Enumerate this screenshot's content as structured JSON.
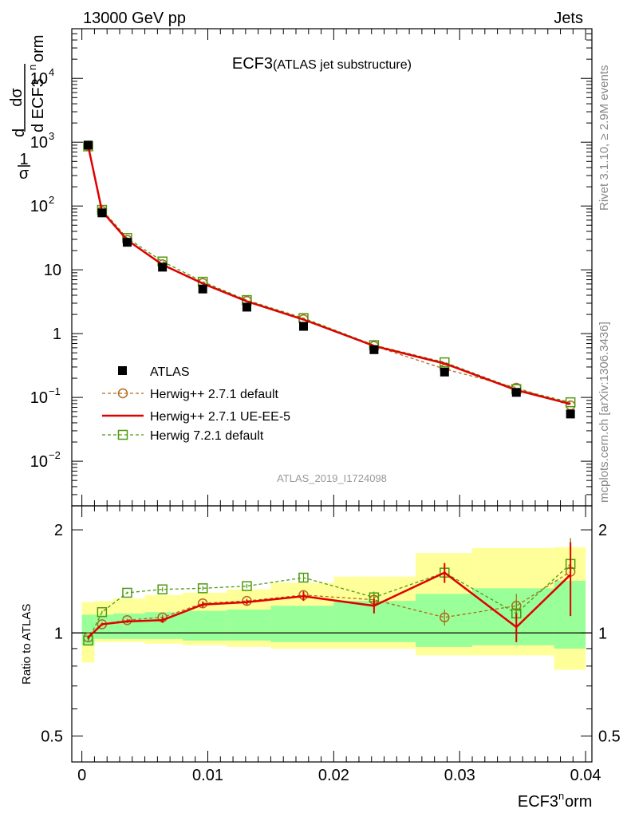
{
  "header": {
    "beam": "13000 GeV pp",
    "process": "Jets",
    "title": "ECF3",
    "subtitle": "(ATLAS jet substructure)",
    "analysis": "ATLAS_2019_I1724098",
    "side_top": "Rivet 3.1.10, ≥ 2.9M events",
    "side_bottom": "mcplots.cern.ch [arXiv:1306.3436]"
  },
  "chart_data": [
    {
      "type": "scatter",
      "panel": "main",
      "ylabel_parts": [
        "1",
        "σ",
        "dσ",
        "d ECF3",
        "n",
        "orm"
      ],
      "yscale": "log",
      "ylim": [
        0.002,
        60000
      ],
      "xlim": [
        -0.0008,
        0.0405
      ],
      "y_ticks": [
        {
          "v": 0.01,
          "base": "10",
          "exp": "−2"
        },
        {
          "v": 0.1,
          "base": "10",
          "exp": "−1"
        },
        {
          "v": 1,
          "base": "1",
          "exp": ""
        },
        {
          "v": 10,
          "base": "10",
          "exp": ""
        },
        {
          "v": 100,
          "base": "10",
          "exp": "2"
        },
        {
          "v": 1000,
          "base": "10",
          "exp": "3"
        },
        {
          "v": 10000,
          "base": "10",
          "exp": "4"
        }
      ],
      "x": [
        0.0005,
        0.0016,
        0.0036,
        0.0064,
        0.0096,
        0.0131,
        0.0176,
        0.0232,
        0.0288,
        0.0345,
        0.0388
      ],
      "series": [
        {
          "name": "ATLAS",
          "kind": "data",
          "color": "#000000",
          "values": [
            900,
            78,
            27,
            11,
            5.0,
            2.6,
            1.3,
            0.56,
            0.25,
            0.12,
            0.055
          ]
        },
        {
          "name": "Herwig++ 2.7.1 default",
          "kind": "circle",
          "color": "#b06a1e",
          "values": [
            880,
            83,
            29.5,
            12.2,
            6.2,
            3.25,
            1.68,
            0.64,
            0.28,
            0.142,
            0.075
          ]
        },
        {
          "name": "Herwig++ 2.7.1 UE-EE-5",
          "kind": "line",
          "color": "#e00000",
          "values": [
            875,
            83,
            29.2,
            12.0,
            6.1,
            3.2,
            1.66,
            0.64,
            0.34,
            0.13,
            0.079
          ]
        },
        {
          "name": "Herwig 7.2.1 default",
          "kind": "square",
          "color": "#4e9a10",
          "values": [
            860,
            87,
            31.5,
            13.5,
            6.5,
            3.35,
            1.75,
            0.66,
            0.355,
            0.135,
            0.084
          ]
        }
      ]
    },
    {
      "type": "line",
      "panel": "ratio",
      "ylabel": "Ratio to ATLAS",
      "yscale": "log",
      "ylim": [
        0.42,
        2.35
      ],
      "y_ticks": [
        {
          "v": 0.5,
          "label": "0.5"
        },
        {
          "v": 1,
          "label": "1"
        },
        {
          "v": 2,
          "label": "2"
        }
      ],
      "xlabel_parts": [
        "ECF3",
        "n",
        "orm"
      ],
      "x_ticks": [
        {
          "v": 0,
          "label": "0"
        },
        {
          "v": 0.01,
          "label": "0.01"
        },
        {
          "v": 0.02,
          "label": "0.02"
        },
        {
          "v": 0.03,
          "label": "0.03"
        },
        {
          "v": 0.04,
          "label": "0.04"
        }
      ],
      "bin_edges": [
        0.0,
        0.001,
        0.0025,
        0.005,
        0.008,
        0.0115,
        0.015,
        0.02,
        0.0265,
        0.031,
        0.0375,
        0.04
      ],
      "band_inner": [
        [
          0.92,
          1.13
        ],
        [
          0.96,
          1.13
        ],
        [
          0.96,
          1.14
        ],
        [
          0.96,
          1.15
        ],
        [
          0.95,
          1.16
        ],
        [
          0.95,
          1.17
        ],
        [
          0.94,
          1.2
        ],
        [
          0.94,
          1.24
        ],
        [
          0.91,
          1.3
        ],
        [
          0.92,
          1.35
        ],
        [
          0.9,
          1.42
        ]
      ],
      "band_outer": [
        [
          0.82,
          1.23
        ],
        [
          0.94,
          1.24
        ],
        [
          0.94,
          1.26
        ],
        [
          0.93,
          1.29
        ],
        [
          0.92,
          1.31
        ],
        [
          0.91,
          1.34
        ],
        [
          0.9,
          1.4
        ],
        [
          0.9,
          1.46
        ],
        [
          0.86,
          1.71
        ],
        [
          0.86,
          1.77
        ],
        [
          0.78,
          1.78
        ]
      ],
      "x": [
        0.0005,
        0.0016,
        0.0036,
        0.0064,
        0.0096,
        0.0131,
        0.0176,
        0.0232,
        0.0288,
        0.0345,
        0.0388
      ],
      "series": [
        {
          "name": "Herwig++ 2.7.1 default",
          "kind": "circle",
          "color": "#b06a1e",
          "values": [
            0.97,
            1.06,
            1.09,
            1.11,
            1.22,
            1.24,
            1.29,
            1.25,
            1.11,
            1.2,
            1.51
          ],
          "errors": [
            0.01,
            0.01,
            0.01,
            0.02,
            0.02,
            0.02,
            0.04,
            0.05,
            0.06,
            0.1,
            0.38
          ]
        },
        {
          "name": "Herwig++ 2.7.1 UE-EE-5",
          "kind": "line",
          "color": "#e00000",
          "values": [
            0.97,
            1.06,
            1.08,
            1.09,
            1.21,
            1.23,
            1.28,
            1.2,
            1.5,
            1.04,
            1.48
          ],
          "errors": [
            0.01,
            0.01,
            0.01,
            0.02,
            0.02,
            0.02,
            0.04,
            0.06,
            0.1,
            0.1,
            0.36
          ]
        },
        {
          "name": "Herwig 7.2.1 default",
          "kind": "square",
          "color": "#4e9a10",
          "values": [
            0.95,
            1.15,
            1.31,
            1.34,
            1.35,
            1.37,
            1.45,
            1.27,
            1.5,
            1.14,
            1.59
          ],
          "errors": [
            0.01,
            0.01,
            0.01,
            0.02,
            0.02,
            0.02,
            0.04,
            0.05,
            0.09,
            0.1,
            0.3
          ]
        }
      ]
    }
  ]
}
